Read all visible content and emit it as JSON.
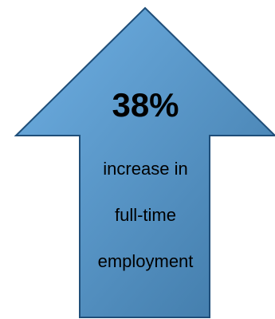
{
  "graphic": {
    "shape": "up-arrow",
    "fill_colors": [
      "#6fb0e4",
      "#3f78a6"
    ],
    "stroke_color": "#1f4e79"
  },
  "stat": {
    "value": "38%",
    "line_1": "increase in",
    "line_2": "full-time",
    "line_3": "employment"
  }
}
